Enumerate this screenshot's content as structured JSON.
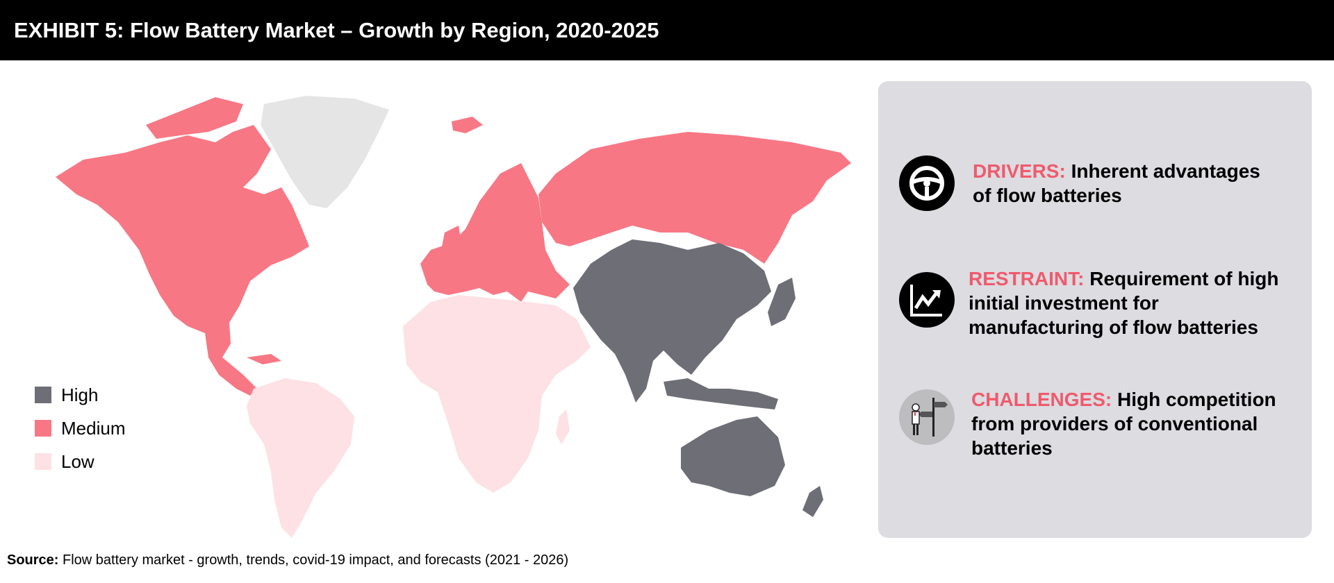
{
  "header": {
    "title": "EXHIBIT 5: Flow Battery Market – Growth by Region, 2020-2025"
  },
  "colors": {
    "high": "#6e6e76",
    "medium": "#f87784",
    "low": "#fde1e4",
    "na": "#e5e5e5",
    "accent": "#f05a6c",
    "panel": "#dcdce1"
  },
  "legend": [
    {
      "label": "High",
      "color": "#6e6e76"
    },
    {
      "label": "Medium",
      "color": "#f87784"
    },
    {
      "label": "Low",
      "color": "#fde1e4"
    }
  ],
  "map": {
    "regions": [
      {
        "name": "North America",
        "level": "Medium"
      },
      {
        "name": "Europe",
        "level": "Medium"
      },
      {
        "name": "Russia",
        "level": "Medium"
      },
      {
        "name": "Asia-Pacific",
        "level": "High"
      },
      {
        "name": "South America",
        "level": "Low"
      },
      {
        "name": "Middle East and Africa",
        "level": "Low"
      }
    ]
  },
  "panel": {
    "drivers": {
      "keyword": "DRIVERS:",
      "text": " Inherent advantages of flow batteries",
      "icon": "steering-wheel-icon"
    },
    "restraint": {
      "keyword": "RESTRAINT:",
      "text": " Requirement of high initial investment for manufacturing of flow batteries",
      "icon": "trend-arrow-icon"
    },
    "challenges": {
      "keyword": "CHALLENGES:",
      "text": " High competition from providers of conventional batteries",
      "icon": "crossroads-person-icon"
    }
  },
  "source": {
    "label": "Source:",
    "text": " Flow battery market - growth, trends, covid-19 impact, and forecasts (2021 - 2026)"
  }
}
